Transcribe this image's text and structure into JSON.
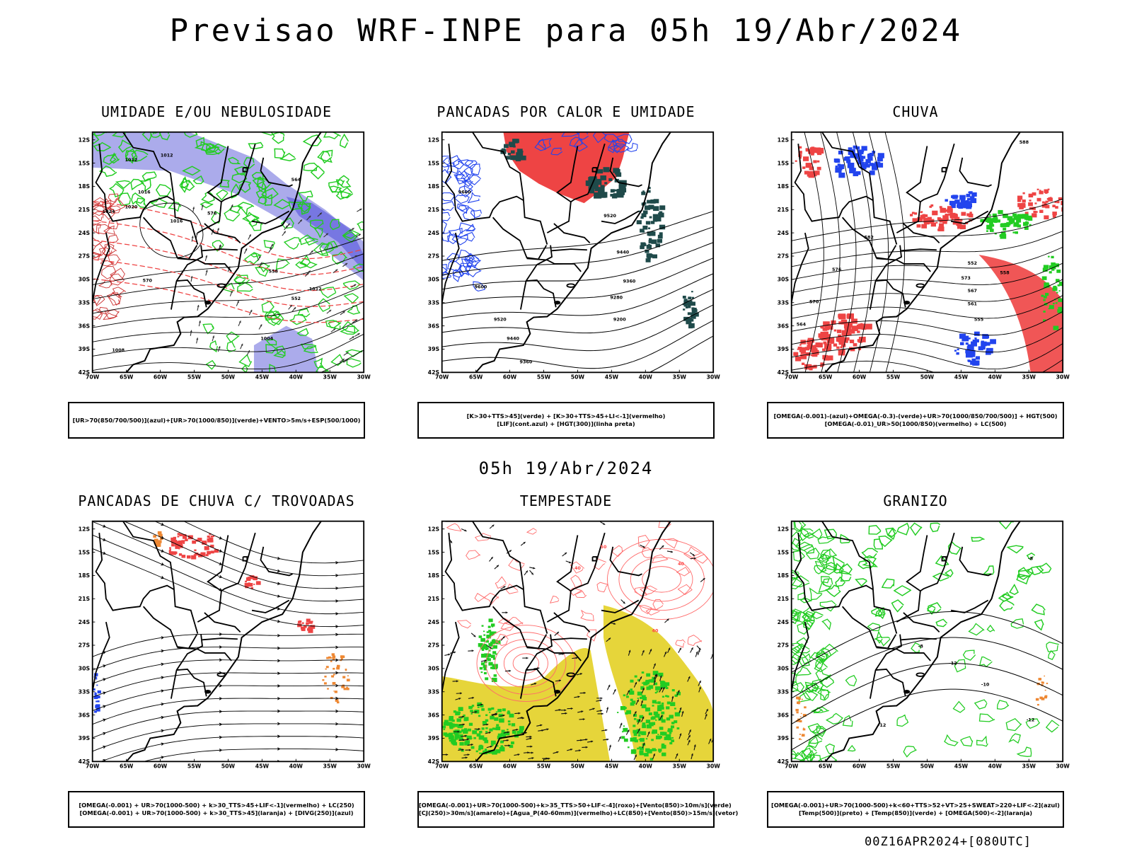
{
  "page": {
    "title": "Previsao WRF-INPE  para 05h 19/Abr/2024",
    "subtitle": "05h 19/Abr/2024",
    "footer": "00Z16APR2024+[080UTC]"
  },
  "axes": {
    "lat_labels": [
      "12S",
      "15S",
      "18S",
      "21S",
      "24S",
      "27S",
      "30S",
      "33S",
      "36S",
      "39S",
      "42S"
    ],
    "lon_labels": [
      "70W",
      "65W",
      "60W",
      "55W",
      "50W",
      "45W",
      "40W",
      "35W",
      "30W"
    ]
  },
  "colors": {
    "green": "#22cc22",
    "red": "#ee4444",
    "blue": "#2244ee",
    "lavender": "#9c9ce8",
    "dark_teal": "#1f4a4a",
    "yellow": "#e6d53a",
    "orange": "#ee8833"
  },
  "panels": [
    {
      "id": "umidade",
      "title": "UMIDADE E/OU NEBULOSIDADE",
      "legend": [
        "[UR>70(850/700/500)](azul)+[UR>70(1000/850)](verde)+VENTO>5m/s+ESP(500/1000)"
      ],
      "contour_labels": [
        "1012",
        "1012",
        "1016",
        "1020",
        "1024",
        "1016",
        "1008",
        "1004",
        "570",
        "576",
        "564",
        "558",
        "552",
        "1012"
      ]
    },
    {
      "id": "pancadas-calor",
      "title": "PANCADAS POR CALOR E UMIDADE",
      "legend": [
        "[K>30+TTS>45](verde) + [K>30+TTS>45+LI<-1](vermelho)",
        "[LIF](cont.azul) + [HGT(300)](linha preta)"
      ],
      "contour_labels": [
        "9600",
        "9520",
        "9440",
        "9360",
        "9280",
        "9200",
        "9600",
        "9520",
        "9440",
        "9360"
      ]
    },
    {
      "id": "chuva",
      "title": "CHUVA",
      "legend": [
        "[OMEGA(-0.001)-(azul)+OMEGA(-0.3)-(verde)+UR>70(1000/850/700/500)] + HGT(500)",
        "[OMEGA(-0.01)_UR>50(1000/850)(vermelho) + LC(500)"
      ],
      "contour_labels": [
        "588",
        "582",
        "576",
        "570",
        "564",
        "558",
        "552",
        "573",
        "567",
        "561",
        "555"
      ]
    },
    {
      "id": "pancadas-trovoadas",
      "title": "PANCADAS DE CHUVA C/ TROVOADAS",
      "legend": [
        "[OMEGA(-0.001) + UR>70(1000-500) + k>30_TTS>45+LIF<-1](vermelho) + LC(250)",
        "[OMEGA(-0.001) + UR>70(1000-500) + k>30_TTS>45](laranja) + [DIVG(250)](azul)"
      ],
      "contour_labels": []
    },
    {
      "id": "tempestade",
      "title": "TEMPESTADE",
      "legend": [
        "[OMEGA(-0.001)+UR>70(1000-500)+k>35_TTS>50+LIF<-4](roxo)+[Vento(850)>10m/s](verde)",
        "[CJ(250)>30m/s](amarelo)+[Agua_P(40-60mm)](vermelho)+LC(850)+[Vento(850)>15m/s](vetor)"
      ],
      "contour_labels": [
        "40",
        "40",
        "50",
        "40"
      ]
    },
    {
      "id": "granizo",
      "title": "GRANIZO",
      "legend": [
        "[OMEGA(-0.001)+UR>70(1000-500)+k<60+TTS>52+VT>25+SWEAT>220+LIF<-2](azul)",
        "[Temp(500)](preto) + [Temp(850)](verde) + [OMEGA(500)<-2](laranja)"
      ],
      "contour_labels": [
        "-8",
        "-12",
        "-10",
        "-12",
        "-12",
        "-8"
      ]
    }
  ]
}
